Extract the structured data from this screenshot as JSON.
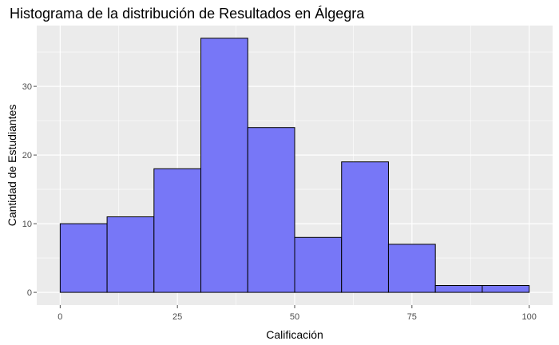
{
  "chart_data": {
    "type": "bar",
    "title": "Histograma de la distribución de Resultados en Álgegra",
    "xlabel": "Calificación",
    "ylabel": "Cantidad de Estudiantes",
    "bins": [
      {
        "from": 0,
        "to": 10,
        "count": 10
      },
      {
        "from": 10,
        "to": 20,
        "count": 11
      },
      {
        "from": 20,
        "to": 30,
        "count": 18
      },
      {
        "from": 30,
        "to": 40,
        "count": 37
      },
      {
        "from": 40,
        "to": 50,
        "count": 24
      },
      {
        "from": 50,
        "to": 60,
        "count": 8
      },
      {
        "from": 60,
        "to": 70,
        "count": 19
      },
      {
        "from": 70,
        "to": 80,
        "count": 7
      },
      {
        "from": 80,
        "to": 90,
        "count": 1
      },
      {
        "from": 90,
        "to": 100,
        "count": 1
      }
    ],
    "xticks": [
      0,
      25,
      50,
      75,
      100
    ],
    "yticks": [
      0,
      10,
      20,
      30
    ],
    "xlim": [
      -5,
      105
    ],
    "ylim": [
      -1.85,
      38.85
    ],
    "grid": true,
    "colors": {
      "panel": "#EBEBEB",
      "grid_major": "#FFFFFF",
      "bar_fill": "#7777F7",
      "bar_stroke": "#000000",
      "tick": "#4D4D4D"
    }
  }
}
